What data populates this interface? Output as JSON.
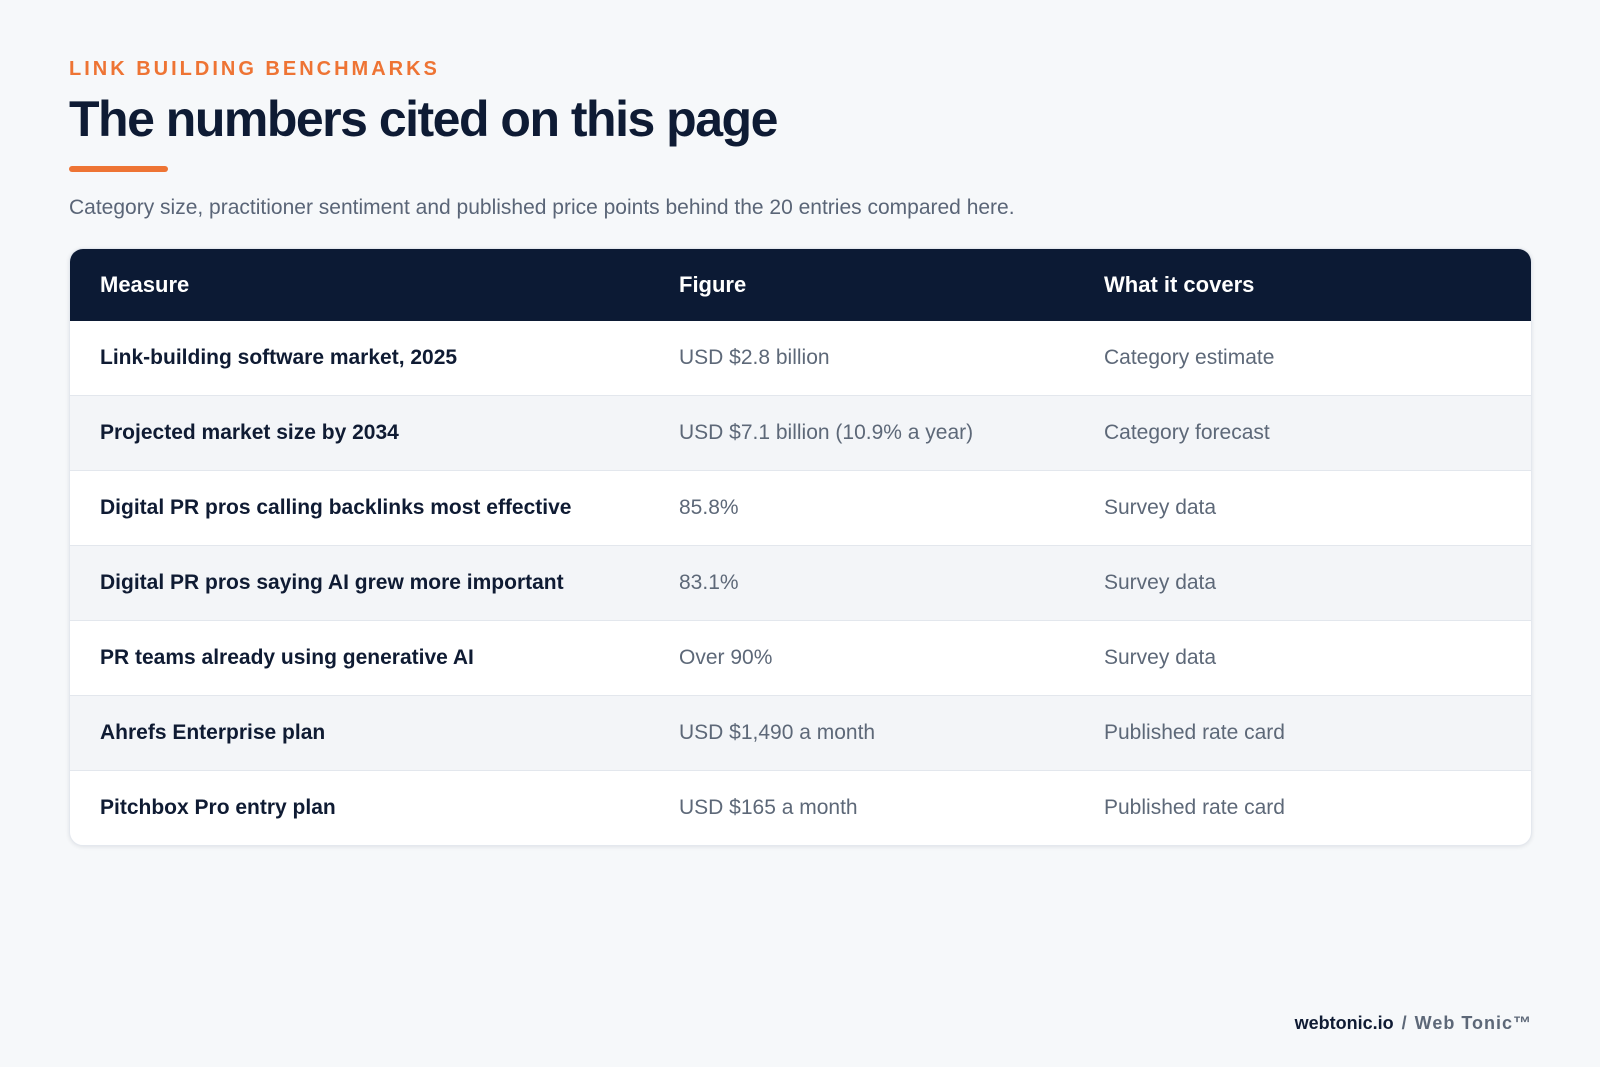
{
  "header": {
    "eyebrow": "LINK BUILDING BENCHMARKS",
    "title": "The numbers cited on this page",
    "subtitle": "Category size, practitioner sentiment and published price points behind the 20 entries compared here."
  },
  "table": {
    "columns": [
      "Measure",
      "Figure",
      "What it covers"
    ],
    "rows": [
      [
        "Link-building software market, 2025",
        "USD $2.8 billion",
        "Category estimate"
      ],
      [
        "Projected market size by 2034",
        "USD $7.1 billion (10.9% a year)",
        "Category forecast"
      ],
      [
        "Digital PR pros calling backlinks most effective",
        "85.8%",
        "Survey data"
      ],
      [
        "Digital PR pros saying AI grew more important",
        "83.1%",
        "Survey data"
      ],
      [
        "PR teams already using generative AI",
        "Over 90%",
        "Survey data"
      ],
      [
        "Ahrefs Enterprise plan",
        "USD $1,490 a month",
        "Published rate card"
      ],
      [
        "Pitchbox Pro entry plan",
        "USD $165 a month",
        "Published rate card"
      ]
    ]
  },
  "footer": {
    "domain": "webtonic.io",
    "separator": "/",
    "brand": "Web Tonic™"
  },
  "colors": {
    "accent": "#ee7434",
    "header_bg": "#0c1a34",
    "page_bg": "#f6f8fa"
  }
}
